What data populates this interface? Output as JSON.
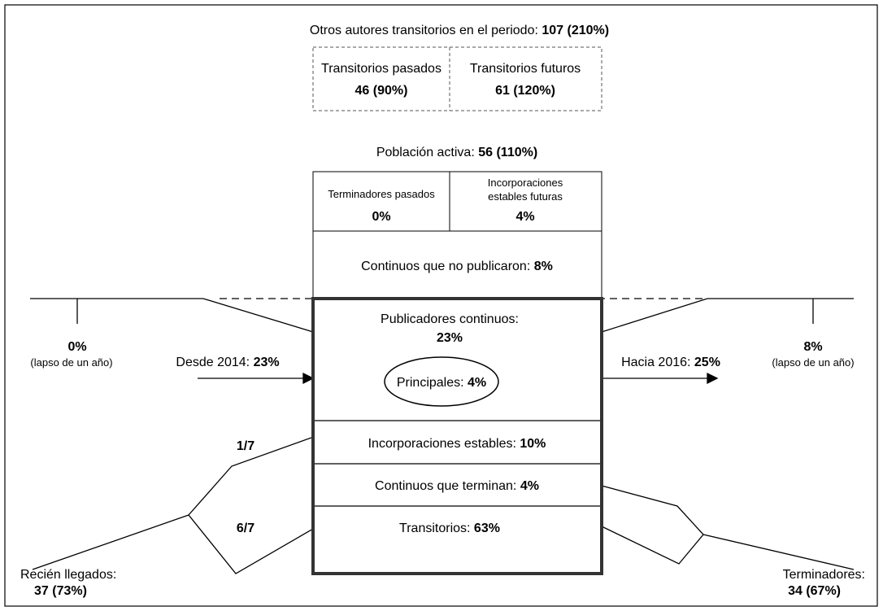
{
  "header": {
    "label": "Otros autores transitorios en el periodo:",
    "value": "107 (210%)"
  },
  "transients": [
    {
      "label": "Transitorios pasados",
      "value": "46 (90%)"
    },
    {
      "label": "Transitorios futuros",
      "value": "61 (120%)"
    }
  ],
  "active": {
    "label": "Población activa:",
    "value": "56 (110%)"
  },
  "upper_cells": [
    {
      "lines": [
        "Terminadores pasados"
      ],
      "value": "0%"
    },
    {
      "lines": [
        "Incorporaciones",
        "estables futuras"
      ],
      "value": "4%"
    }
  ],
  "non_publishing": {
    "label": "Continuos que no publicaron:",
    "value": "8%"
  },
  "main": [
    {
      "label": "Publicadores continuos:",
      "value": "23%"
    },
    {
      "label": "Incorporaciones estables:",
      "value": "10%"
    },
    {
      "label": "Continuos que terminan:",
      "value": "4%"
    },
    {
      "label": "Transitorios:",
      "value": "63%"
    }
  ],
  "core": {
    "label": "Principales:",
    "value": "4%"
  },
  "left_gap": {
    "value": "0%",
    "note": "(lapso de un año)"
  },
  "right_gap": {
    "value": "8%",
    "note": "(lapso de un año)"
  },
  "from": {
    "label": "Desde 2014:",
    "value": "23%"
  },
  "to": {
    "label": "Hacia 2016:",
    "value": "25%"
  },
  "fractions": [
    "1/7",
    "6/7"
  ],
  "newcomers": {
    "label": "Recién llegados:",
    "value": "37 (73%)"
  },
  "terminators": {
    "label": "Terminadores:",
    "value": "34 (67%)"
  }
}
